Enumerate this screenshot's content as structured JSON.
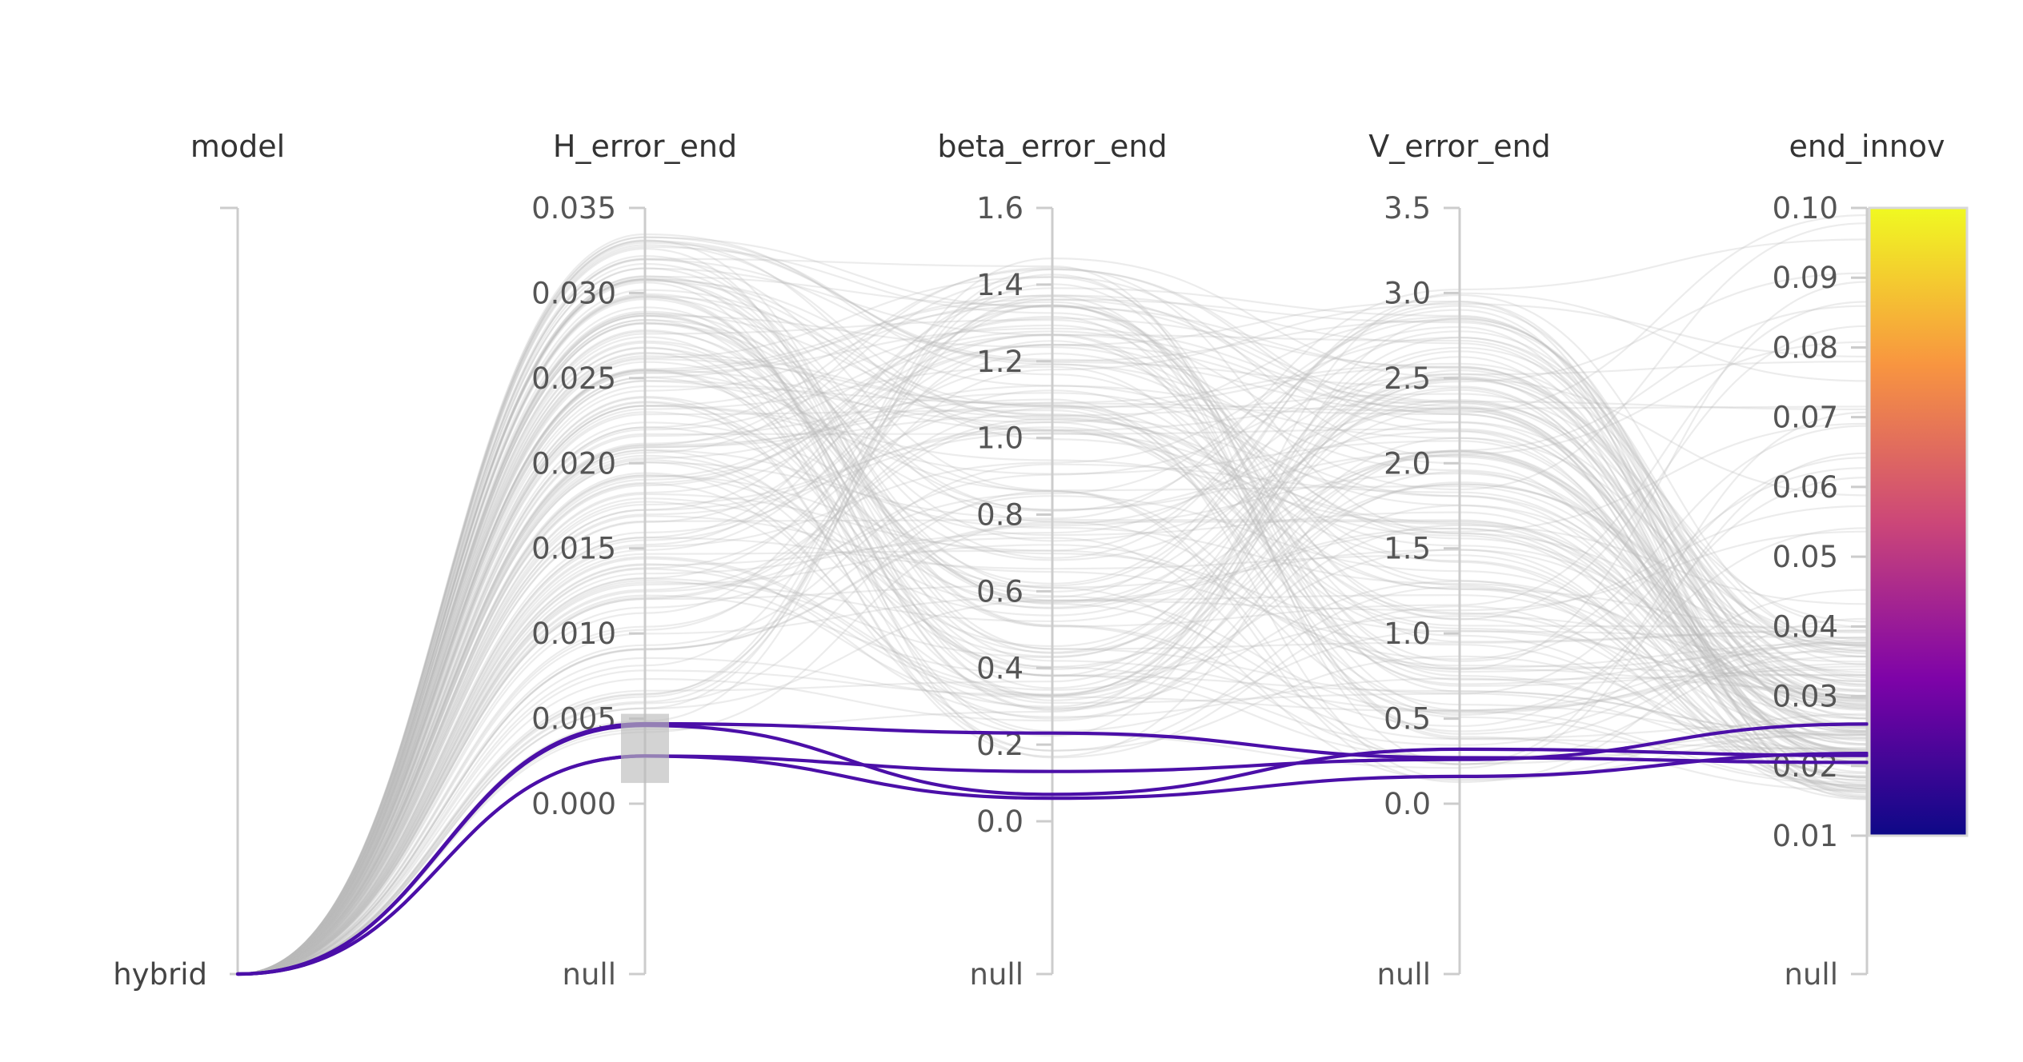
{
  "chart_data": {
    "type": "parallel_coordinates",
    "title": "",
    "axes": [
      {
        "name": "model",
        "kind": "category",
        "categories": [
          "hybrid"
        ]
      },
      {
        "name": "H_error_end",
        "kind": "numeric",
        "range": [
          0,
          0.035
        ],
        "ticks": [
          "0.035",
          "0.030",
          "0.025",
          "0.020",
          "0.015",
          "0.010",
          "0.005",
          "0.000"
        ],
        "tick_values": [
          0.035,
          0.03,
          0.025,
          0.02,
          0.015,
          0.01,
          0.005,
          0
        ],
        "null_label": "null",
        "brush": [
          0.0015,
          0.005
        ]
      },
      {
        "name": "beta_error_end",
        "kind": "numeric",
        "range": [
          0,
          1.6
        ],
        "ticks": [
          "1.6",
          "1.4",
          "1.2",
          "1.0",
          "0.8",
          "0.6",
          "0.4",
          "0.2",
          "0.0"
        ],
        "tick_values": [
          1.6,
          1.4,
          1.2,
          1.0,
          0.8,
          0.6,
          0.4,
          0.2,
          0
        ],
        "null_label": "null"
      },
      {
        "name": "V_error_end",
        "kind": "numeric",
        "range": [
          0,
          3.5
        ],
        "ticks": [
          "3.5",
          "3.0",
          "2.5",
          "2.0",
          "1.5",
          "1.0",
          "0.5",
          "0.0"
        ],
        "tick_values": [
          3.5,
          3.0,
          2.5,
          2.0,
          1.5,
          1.0,
          0.5,
          0
        ],
        "null_label": "null"
      },
      {
        "name": "end_innov",
        "kind": "numeric",
        "range": [
          0.01,
          0.1
        ],
        "ticks": [
          "0.10",
          "0.09",
          "0.08",
          "0.07",
          "0.06",
          "0.05",
          "0.04",
          "0.03",
          "0.02",
          "0.01"
        ],
        "tick_values": [
          0.1,
          0.09,
          0.08,
          0.07,
          0.06,
          0.05,
          0.04,
          0.03,
          0.02,
          0.01
        ],
        "null_label": "null",
        "colorscale": true
      }
    ],
    "colorscale": [
      "#0d0887",
      "#7e03a8",
      "#cc4778",
      "#f89540",
      "#f0f921"
    ],
    "highlighted_color": "#4b0fa8",
    "dimmed_color": "#bbbbbb",
    "highlighted_lines": [
      {
        "model": "hybrid",
        "H_error_end": 0.0047,
        "beta_error_end": 0.23,
        "V_error_end": 0.27,
        "end_innov": 0.0205
      },
      {
        "model": "hybrid",
        "H_error_end": 0.0046,
        "beta_error_end": 0.07,
        "V_error_end": 0.32,
        "end_innov": 0.0215
      },
      {
        "model": "hybrid",
        "H_error_end": 0.0028,
        "beta_error_end": 0.13,
        "V_error_end": 0.26,
        "end_innov": 0.026
      },
      {
        "model": "hybrid",
        "H_error_end": 0.0028,
        "beta_error_end": 0.06,
        "V_error_end": 0.16,
        "end_innov": 0.0218
      }
    ],
    "background_line_count": 170
  }
}
